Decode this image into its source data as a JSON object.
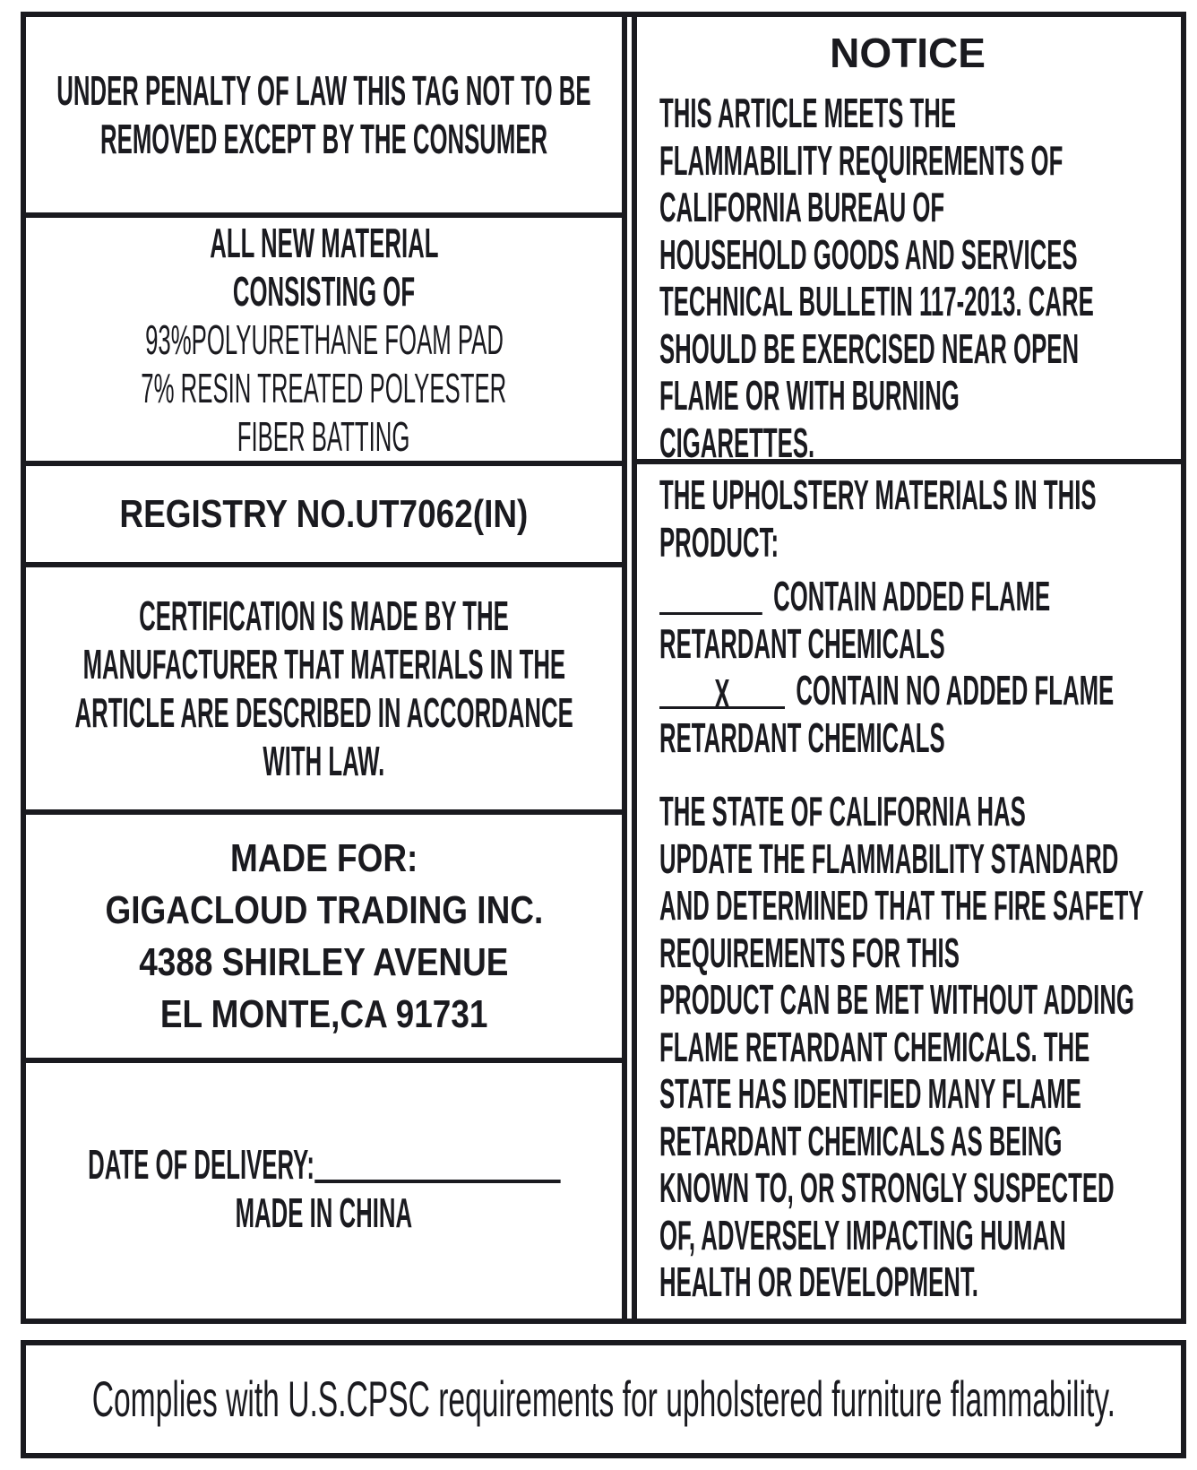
{
  "left": {
    "penalty": [
      "UNDER PENALTY OF LAW THIS TAG NOT TO BE",
      "REMOVED EXCEPT BY  THE CONSUMER"
    ],
    "material_heading": [
      "ALL NEW MATERIAL",
      "CONSISTING OF"
    ],
    "material_items": [
      "93%POLYURETHANE FOAM PAD",
      "7% RESIN TREATED POLYESTER",
      "FIBER BATTING"
    ],
    "registry": "REGISTRY NO.UT7062(IN)",
    "certification": [
      "CERTIFICATION IS MADE BY THE",
      "MANUFACTURER THAT MATERIALS IN THE",
      "ARTICLE ARE DESCRIBED IN ACCORDANCE",
      "WITH LAW."
    ],
    "made_for": [
      "MADE FOR:",
      "GIGACLOUD TRADING INC.",
      "4388 SHIRLEY AVENUE",
      "EL MONTE,CA 91731"
    ],
    "date_of_delivery": "DATE OF DELIVERY:",
    "made_in": "MADE IN CHINA"
  },
  "right": {
    "notice_title": "NOTICE",
    "notice": [
      "THIS ARTICLE MEETS THE",
      "FLAMMABILITY REQUIREMENTS OF",
      "CALIFORNIA BUREAU OF",
      "HOUSEHOLD GOODS AND SERVICES",
      "TECHNICAL BULLETIN 117-2013. CARE",
      "SHOULD BE EXERCISED NEAR OPEN",
      "FLAME OR WITH BURNING",
      "CIGARETTES."
    ],
    "upholstery": [
      "THE UPHOLSTERY MATERIALS IN THIS",
      "PRODUCT:"
    ],
    "option_added": {
      "mark": "",
      "label": "CONTAIN ADDED FLAME",
      "cont": "RETARDANT CHEMICALS"
    },
    "option_none": {
      "mark": "X",
      "label": "CONTAIN NO ADDED FLAME",
      "cont": "RETARDANT CHEMICALS"
    },
    "state": [
      "THE STATE OF CALIFORNIA HAS",
      "UPDATE THE FLAMMABILITY STANDARD",
      "AND DETERMINED THAT THE FIRE SAFETY",
      "REQUIREMENTS FOR THIS",
      "PRODUCT CAN BE MET WITHOUT ADDING",
      "FLAME RETARDANT CHEMICALS. THE",
      "STATE HAS IDENTIFIED MANY FLAME",
      "RETARDANT CHEMICALS AS BEING",
      "KNOWN TO, OR STRONGLY SUSPECTED",
      "OF, ADVERSELY IMPACTING HUMAN",
      "HEALTH OR DEVELOPMENT."
    ]
  },
  "footer": "Complies with U.S.CPSC requirements for upholstered furniture flammability."
}
